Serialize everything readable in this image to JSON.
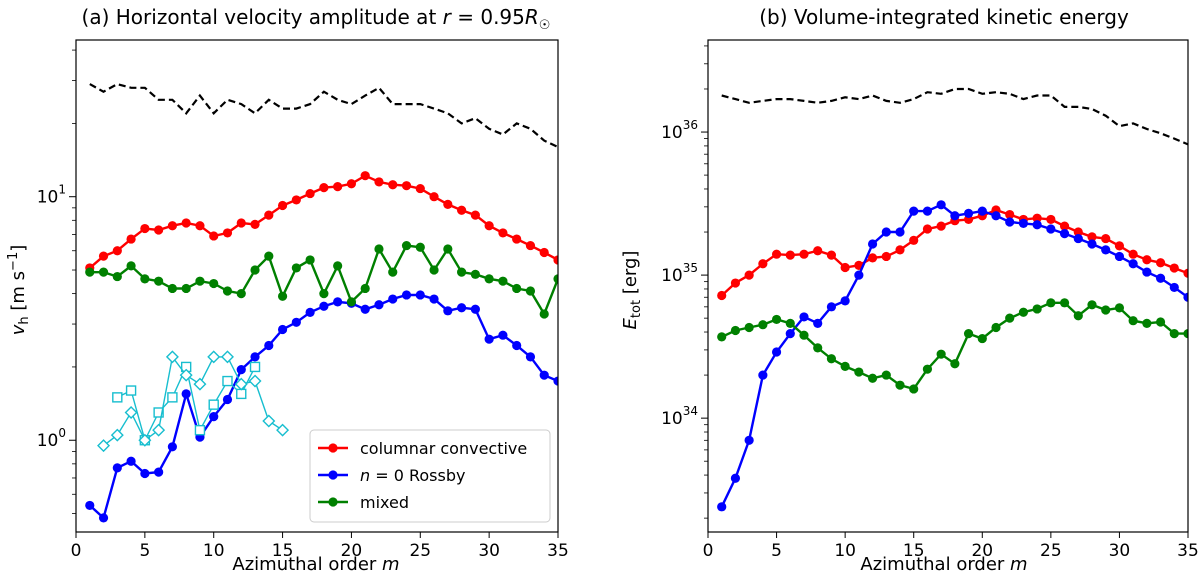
{
  "chart_data": [
    {
      "panel": "a",
      "type": "line",
      "title": "(a) Horizontal velocity amplitude at r = 0.95R☉",
      "title_parts": {
        "prefix": "(a) Horizontal velocity amplitude at ",
        "r": "r",
        "eq": " = 0.95",
        "R": "R",
        "sun": "☉"
      },
      "xlabel": "Azimuthal order m",
      "xlabel_parts": {
        "text": "Azimuthal order ",
        "m": "m"
      },
      "ylabel": "v_h [m s^-1]",
      "ylabel_parts": {
        "v": "v",
        "h": "h",
        "unit": " [m s",
        "exp": "−1",
        "close": "]"
      },
      "y_scale": "log",
      "xlim": [
        0,
        35
      ],
      "ylim": [
        0.42,
        44
      ],
      "x_ticks": [
        0,
        5,
        10,
        15,
        20,
        25,
        30,
        35
      ],
      "y_ticks": [
        {
          "value": 1,
          "label": "10",
          "exp": "0"
        },
        {
          "value": 10,
          "label": "10",
          "exp": "1"
        }
      ],
      "legend_position": "lower-right",
      "legend": [
        {
          "key": "convective",
          "label": "columnar convective"
        },
        {
          "key": "rossby",
          "label_prefix": "n",
          "label": " = 0 Rossby"
        },
        {
          "key": "mixed",
          "label": "mixed"
        }
      ],
      "series": [
        {
          "key": "dashed",
          "color": "#000000",
          "style": "dashed",
          "marker": "none",
          "x": [
            1,
            2,
            3,
            4,
            5,
            6,
            7,
            8,
            9,
            10,
            11,
            12,
            13,
            14,
            15,
            16,
            17,
            18,
            19,
            20,
            21,
            22,
            23,
            24,
            25,
            26,
            27,
            28,
            29,
            30,
            31,
            32,
            33,
            34,
            35
          ],
          "values": [
            29,
            27,
            29,
            28,
            28,
            25,
            25,
            22,
            26,
            22,
            25,
            24,
            22,
            25,
            23,
            23,
            24,
            27,
            25,
            24,
            26,
            28,
            24,
            24,
            24,
            23,
            22,
            20,
            21,
            19,
            18,
            20,
            19,
            17,
            16
          ]
        },
        {
          "key": "convective",
          "name": "columnar convective",
          "color": "#ff0000",
          "style": "solid",
          "marker": "circle",
          "x": [
            1,
            2,
            3,
            4,
            5,
            6,
            7,
            8,
            9,
            10,
            11,
            12,
            13,
            14,
            15,
            16,
            17,
            18,
            19,
            20,
            21,
            22,
            23,
            24,
            25,
            26,
            27,
            28,
            29,
            30,
            31,
            32,
            33,
            34,
            35
          ],
          "values": [
            5.1,
            5.7,
            6.0,
            6.7,
            7.4,
            7.3,
            7.6,
            7.8,
            7.6,
            6.9,
            7.1,
            7.8,
            7.7,
            8.4,
            9.2,
            9.7,
            10.3,
            10.9,
            11.0,
            11.3,
            12.2,
            11.5,
            11.2,
            11.1,
            10.8,
            10.0,
            9.3,
            8.8,
            8.4,
            7.6,
            7.1,
            6.7,
            6.3,
            5.9,
            5.5
          ]
        },
        {
          "key": "rossby",
          "name": "n = 0 Rossby",
          "color": "#0000ff",
          "style": "solid",
          "marker": "circle",
          "x": [
            1,
            2,
            3,
            4,
            5,
            6,
            7,
            8,
            9,
            10,
            11,
            12,
            13,
            14,
            15,
            16,
            17,
            18,
            19,
            20,
            21,
            22,
            23,
            24,
            25,
            26,
            27,
            28,
            29,
            30,
            31,
            32,
            33,
            34,
            35
          ],
          "values": [
            0.54,
            0.48,
            0.77,
            0.82,
            0.73,
            0.74,
            0.94,
            1.55,
            1.03,
            1.25,
            1.47,
            1.95,
            2.2,
            2.45,
            2.85,
            3.05,
            3.35,
            3.55,
            3.7,
            3.65,
            3.45,
            3.6,
            3.8,
            3.95,
            3.95,
            3.8,
            3.4,
            3.5,
            3.45,
            2.6,
            2.7,
            2.45,
            2.2,
            1.85,
            1.75
          ]
        },
        {
          "key": "mixed",
          "name": "mixed",
          "color": "#008000",
          "style": "solid",
          "marker": "circle",
          "x": [
            1,
            2,
            3,
            4,
            5,
            6,
            7,
            8,
            9,
            10,
            11,
            12,
            13,
            14,
            15,
            16,
            17,
            18,
            19,
            20,
            21,
            22,
            23,
            24,
            25,
            26,
            27,
            28,
            29,
            30,
            31,
            32,
            33,
            34,
            35
          ],
          "values": [
            4.9,
            4.9,
            4.7,
            5.2,
            4.6,
            4.5,
            4.2,
            4.2,
            4.5,
            4.4,
            4.1,
            4.0,
            5.0,
            5.7,
            3.9,
            5.1,
            5.5,
            4.0,
            5.2,
            3.7,
            4.2,
            6.1,
            4.9,
            6.3,
            6.2,
            5.0,
            6.1,
            4.9,
            4.8,
            4.6,
            4.5,
            4.2,
            4.1,
            3.3,
            4.6
          ]
        },
        {
          "key": "cyan_squares",
          "color": "#17becf",
          "style": "solid",
          "marker": "square",
          "x": [
            3,
            4,
            5,
            6,
            7,
            8,
            9,
            10,
            11,
            12,
            13
          ],
          "values": [
            1.5,
            1.6,
            1.0,
            1.3,
            1.5,
            2.0,
            1.1,
            1.4,
            1.75,
            1.55,
            2.0
          ]
        },
        {
          "key": "cyan_diamonds",
          "color": "#17becf",
          "style": "solid",
          "marker": "diamond",
          "x": [
            2,
            3,
            4,
            5,
            6,
            7,
            8,
            9,
            10,
            11,
            12,
            13,
            14,
            15
          ],
          "values": [
            0.95,
            1.05,
            1.3,
            1.0,
            1.1,
            2.2,
            1.85,
            1.7,
            2.2,
            2.2,
            1.7,
            1.75,
            1.2,
            1.1
          ]
        }
      ]
    },
    {
      "panel": "b",
      "type": "line",
      "title": "(b) Volume-integrated kinetic energy",
      "xlabel": "Azimuthal order m",
      "xlabel_parts": {
        "text": "Azimuthal order ",
        "m": "m"
      },
      "ylabel": "E_tot [erg]",
      "ylabel_parts": {
        "E": "E",
        "tot": "tot",
        "unit": " [erg]"
      },
      "y_scale": "log",
      "xlim": [
        0,
        35
      ],
      "ylim": [
        1.6e+33,
        4.4e+36
      ],
      "x_ticks": [
        0,
        5,
        10,
        15,
        20,
        25,
        30,
        35
      ],
      "y_ticks": [
        {
          "value": 1e+34,
          "label": "10",
          "exp": "34"
        },
        {
          "value": 1e+35,
          "label": "10",
          "exp": "35"
        },
        {
          "value": 1e+36,
          "label": "10",
          "exp": "36"
        }
      ],
      "series": [
        {
          "key": "dashed",
          "color": "#000000",
          "style": "dashed",
          "marker": "none",
          "x": [
            1,
            2,
            3,
            4,
            5,
            6,
            7,
            8,
            9,
            10,
            11,
            12,
            13,
            14,
            15,
            16,
            17,
            18,
            19,
            20,
            21,
            22,
            23,
            24,
            25,
            26,
            27,
            28,
            29,
            30,
            31,
            32,
            33,
            34,
            35
          ],
          "values": [
            1.8e+36,
            1.7e+36,
            1.6e+36,
            1.65e+36,
            1.7e+36,
            1.7e+36,
            1.65e+36,
            1.6e+36,
            1.65e+36,
            1.75e+36,
            1.7e+36,
            1.8e+36,
            1.65e+36,
            1.6e+36,
            1.7e+36,
            1.9e+36,
            1.85e+36,
            2e+36,
            2e+36,
            1.85e+36,
            1.9e+36,
            1.85e+36,
            1.7e+36,
            1.8e+36,
            1.8e+36,
            1.5e+36,
            1.5e+36,
            1.45e+36,
            1.3e+36,
            1.1e+36,
            1.15e+36,
            1.05e+36,
            9.8e+35,
            9e+35,
            8.2e+35
          ]
        },
        {
          "key": "convective",
          "color": "#ff0000",
          "style": "solid",
          "marker": "circle",
          "x": [
            1,
            2,
            3,
            4,
            5,
            6,
            7,
            8,
            9,
            10,
            11,
            12,
            13,
            14,
            15,
            16,
            17,
            18,
            19,
            20,
            21,
            22,
            23,
            24,
            25,
            26,
            27,
            28,
            29,
            30,
            31,
            32,
            33,
            34,
            35
          ],
          "values": [
            7.2e+34,
            8.8e+34,
            1e+35,
            1.2e+35,
            1.4e+35,
            1.38e+35,
            1.4e+35,
            1.48e+35,
            1.38e+35,
            1.13e+35,
            1.17e+35,
            1.32e+35,
            1.35e+35,
            1.5e+35,
            1.75e+35,
            2.1e+35,
            2.2e+35,
            2.4e+35,
            2.45e+35,
            2.6e+35,
            2.85e+35,
            2.65e+35,
            2.45e+35,
            2.5e+35,
            2.45e+35,
            2.2e+35,
            2e+35,
            1.85e+35,
            1.8e+35,
            1.6e+35,
            1.4e+35,
            1.28e+35,
            1.22e+35,
            1.12e+35,
            1.03e+35
          ]
        },
        {
          "key": "rossby",
          "color": "#0000ff",
          "style": "solid",
          "marker": "circle",
          "x": [
            1,
            2,
            3,
            4,
            5,
            6,
            7,
            8,
            9,
            10,
            11,
            12,
            13,
            14,
            15,
            16,
            17,
            18,
            19,
            20,
            21,
            22,
            23,
            24,
            25,
            26,
            27,
            28,
            29,
            30,
            31,
            32,
            33,
            34,
            35
          ],
          "values": [
            2.4e+33,
            3.8e+33,
            7e+33,
            2e+34,
            2.9e+34,
            3.9e+34,
            5.1e+34,
            4.6e+34,
            6e+34,
            6.6e+34,
            1e+35,
            1.65e+35,
            2e+35,
            2e+35,
            2.8e+35,
            2.8e+35,
            3.1e+35,
            2.6e+35,
            2.7e+35,
            2.8e+35,
            2.6e+35,
            2.35e+35,
            2.3e+35,
            2.25e+35,
            2.1e+35,
            1.95e+35,
            1.8e+35,
            1.65e+35,
            1.5e+35,
            1.35e+35,
            1.2e+35,
            1.05e+35,
            9.5e+34,
            8.2e+34,
            7e+34
          ]
        },
        {
          "key": "mixed",
          "color": "#008000",
          "style": "solid",
          "marker": "circle",
          "x": [
            1,
            2,
            3,
            4,
            5,
            6,
            7,
            8,
            9,
            10,
            11,
            12,
            13,
            14,
            15,
            16,
            17,
            18,
            19,
            20,
            21,
            22,
            23,
            24,
            25,
            26,
            27,
            28,
            29,
            30,
            31,
            32,
            33,
            34,
            35
          ],
          "values": [
            3.7e+34,
            4.1e+34,
            4.3e+34,
            4.5e+34,
            4.9e+34,
            4.6e+34,
            3.8e+34,
            3.1e+34,
            2.6e+34,
            2.3e+34,
            2.1e+34,
            1.9e+34,
            2e+34,
            1.7e+34,
            1.6e+34,
            2.2e+34,
            2.8e+34,
            2.4e+34,
            3.9e+34,
            3.6e+34,
            4.3e+34,
            5e+34,
            5.5e+34,
            5.8e+34,
            6.4e+34,
            6.4e+34,
            5.2e+34,
            6.2e+34,
            5.7e+34,
            5.9e+34,
            4.8e+34,
            4.6e+34,
            4.7e+34,
            3.9e+34,
            3.9e+34
          ]
        }
      ]
    }
  ]
}
